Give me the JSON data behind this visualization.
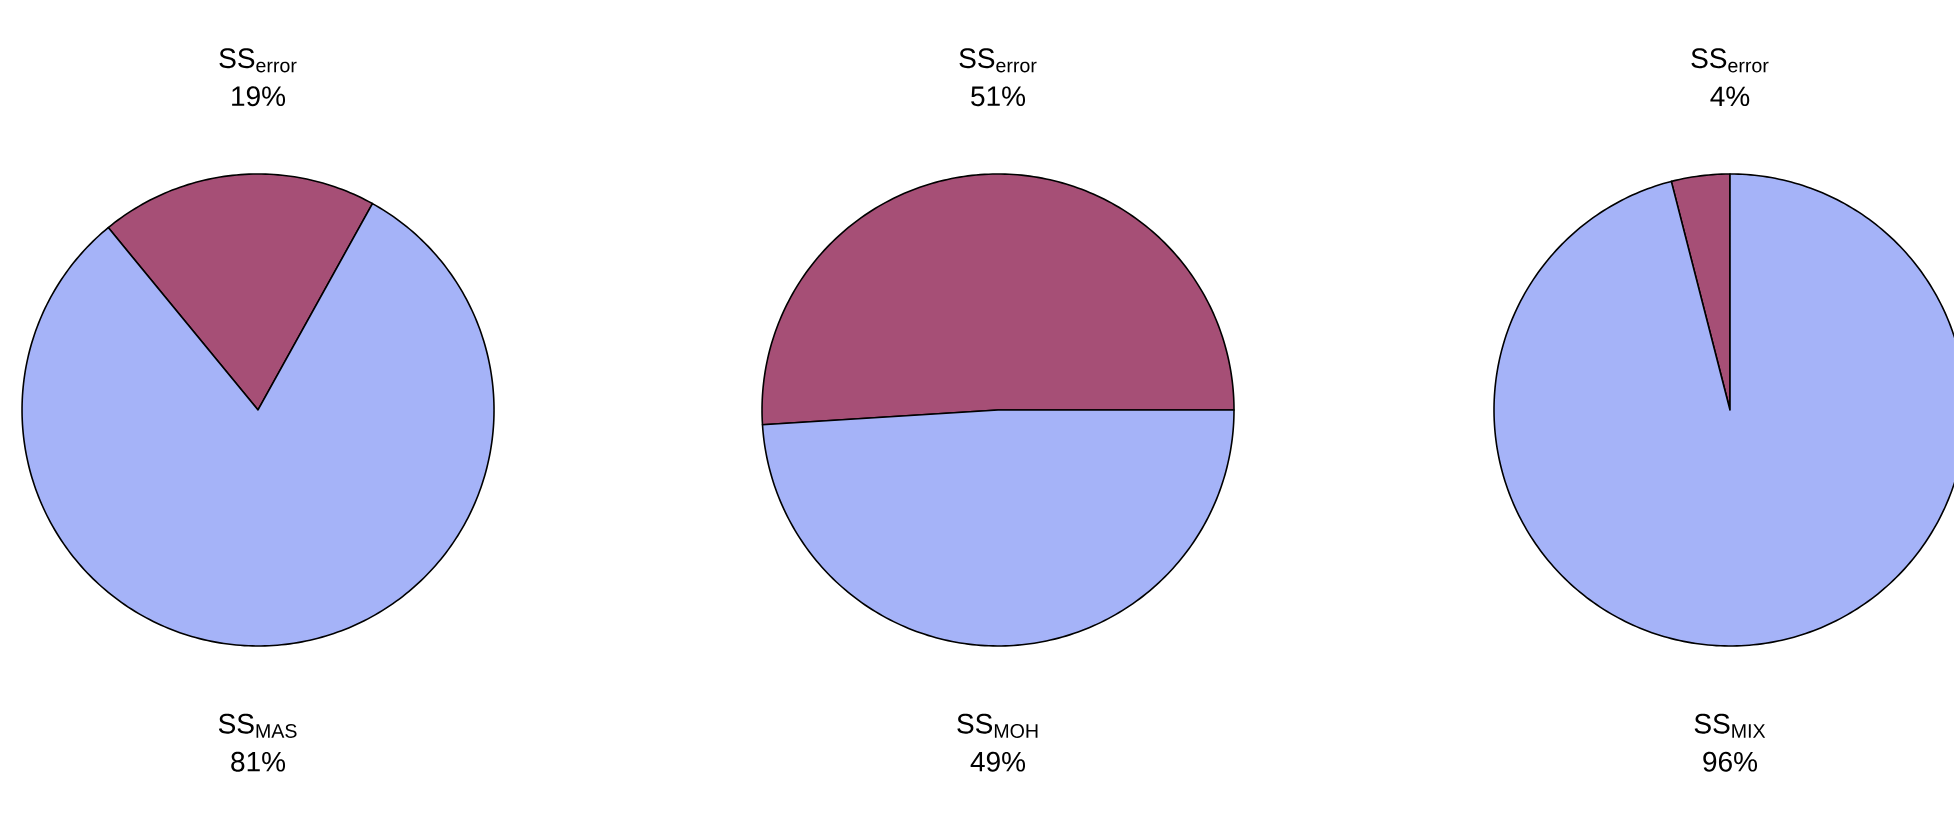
{
  "chart_data": [
    {
      "type": "pie",
      "categories": [
        "SS$_{MAS}$",
        "SS$_{error}$"
      ],
      "values": [
        81,
        19
      ],
      "value_labels": [
        "81%",
        "19%"
      ],
      "colors": [
        "#a5b3f8",
        "#a64f76"
      ]
    },
    {
      "type": "pie",
      "categories": [
        "SS$_{MOH}$",
        "SS$_{error}$"
      ],
      "values": [
        49,
        51
      ],
      "value_labels": [
        "49%",
        "51%"
      ],
      "colors": [
        "#a5b3f8",
        "#a64f76"
      ]
    },
    {
      "type": "pie",
      "categories": [
        "SS$_{MIX}$",
        "SS$_{error}$"
      ],
      "values": [
        96,
        4
      ],
      "value_labels": [
        "96%",
        "4%"
      ],
      "colors": [
        "#a5b3f8",
        "#a64f76"
      ]
    }
  ]
}
